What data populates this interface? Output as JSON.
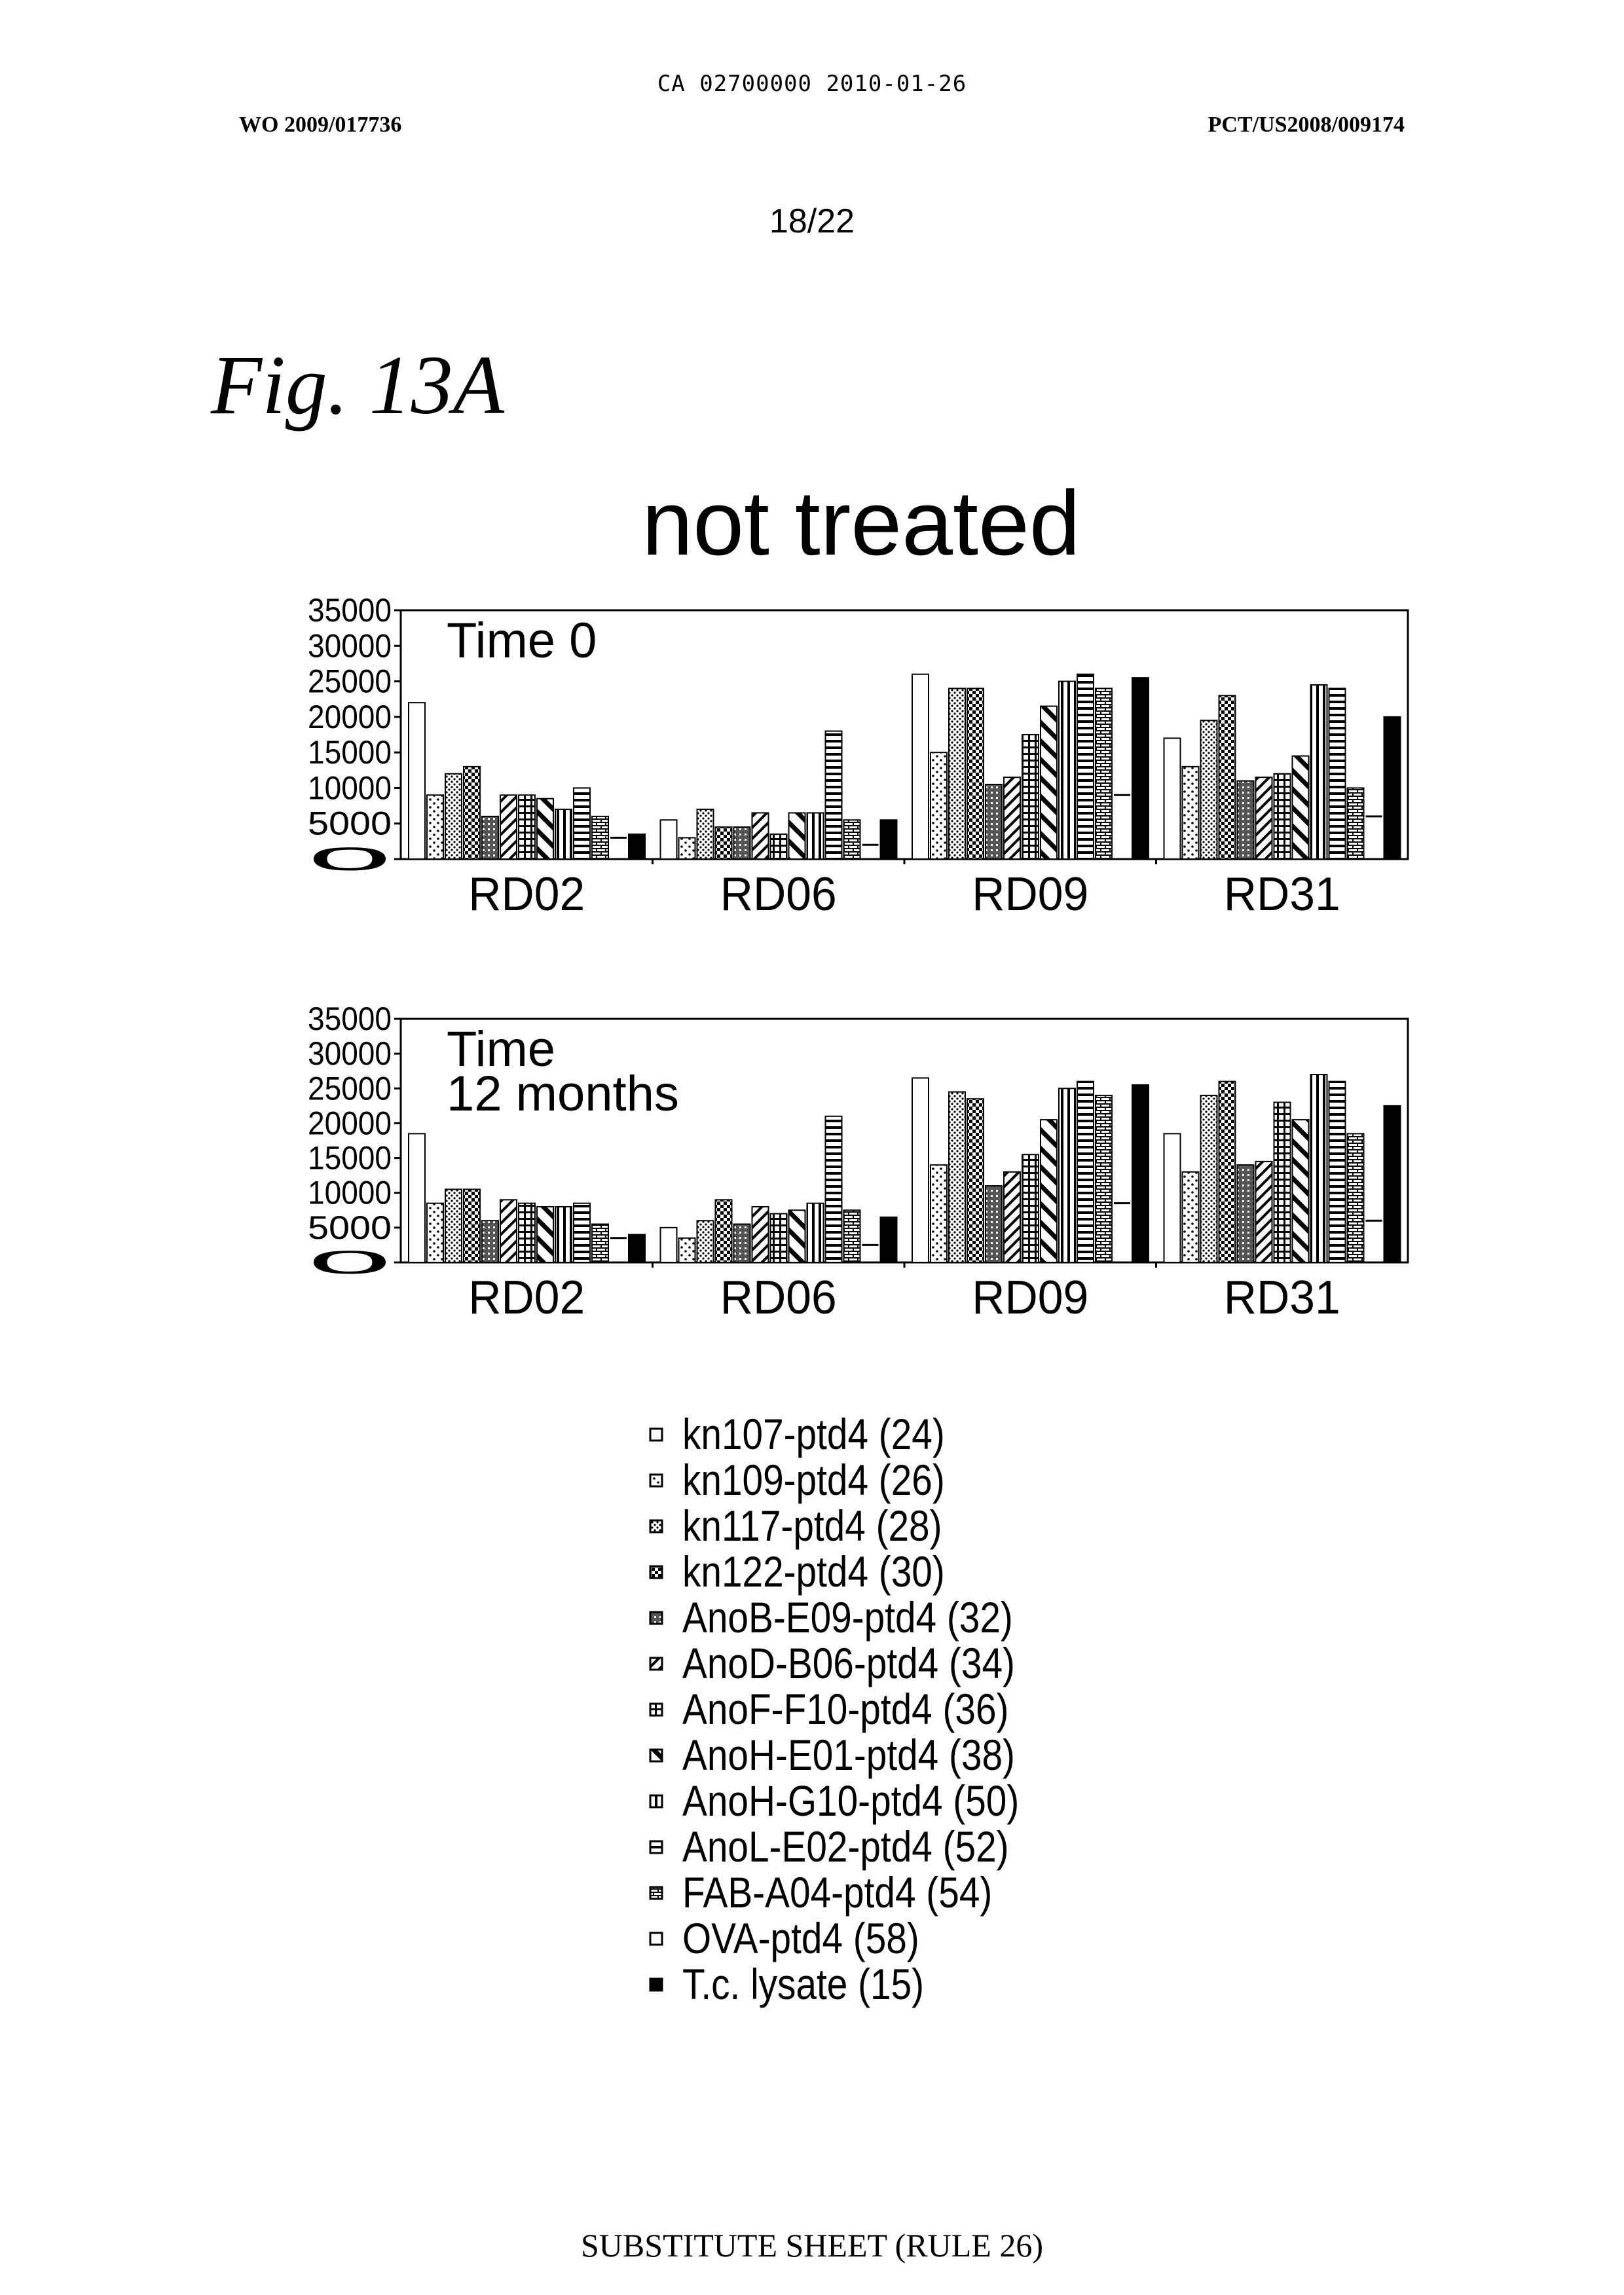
{
  "header": {
    "ca_line": "CA 02700000 2010-01-26",
    "wo_number": "WO 2009/017736",
    "pct_number": "PCT/US2008/009174",
    "page_number": "18/22"
  },
  "figure_label": "Fig. 13A",
  "main_title": "not treated",
  "footer": "SUBSTITUTE SHEET (RULE 26)",
  "chart_data": [
    {
      "type": "bar",
      "title": "Time 0",
      "ylim": [
        0,
        35000
      ],
      "yticks": [
        "35000",
        "30000",
        "25000",
        "20000",
        "15000",
        "10000",
        "5000",
        "0"
      ],
      "categories": [
        "RD02",
        "RD06",
        "RD09",
        "RD31"
      ],
      "series": [
        {
          "name": "kn107-ptd4 (24)",
          "values": [
            22000,
            5500,
            26000,
            17000
          ]
        },
        {
          "name": "kn109-ptd4 (26)",
          "values": [
            9000,
            3000,
            15000,
            13000
          ]
        },
        {
          "name": "kn117-ptd4 (28)",
          "values": [
            12000,
            7000,
            24000,
            19500
          ]
        },
        {
          "name": "kn122-ptd4 (30)",
          "values": [
            13000,
            4500,
            24000,
            23000
          ]
        },
        {
          "name": "AnoB-E09-ptd4 (32)",
          "values": [
            6000,
            4500,
            10500,
            11000
          ]
        },
        {
          "name": "AnoD-B06-ptd4 (34)",
          "values": [
            9000,
            6500,
            11500,
            11500
          ]
        },
        {
          "name": "AnoF-F10-ptd4 (36)",
          "values": [
            9000,
            3500,
            17500,
            12000
          ]
        },
        {
          "name": "AnoH-E01-ptd4 (38)",
          "values": [
            8500,
            6500,
            21500,
            14500
          ]
        },
        {
          "name": "AnoH-G10-ptd4 (50)",
          "values": [
            7000,
            6500,
            25000,
            24500
          ]
        },
        {
          "name": "AnoL-E02-ptd4 (52)",
          "values": [
            10000,
            18000,
            26000,
            24000
          ]
        },
        {
          "name": "FAB-A04-ptd4 (54)",
          "values": [
            6000,
            5500,
            24000,
            10000
          ]
        },
        {
          "name": "OVA-ptd4 (58)",
          "values": [
            3000,
            2000,
            9000,
            6000
          ]
        },
        {
          "name": "T.c. lysate (15)",
          "values": [
            3500,
            5500,
            25500,
            20000
          ]
        }
      ]
    },
    {
      "type": "bar",
      "title": "Time\n12 months",
      "title_lines": [
        "Time",
        "12 months"
      ],
      "ylim": [
        0,
        35000
      ],
      "yticks": [
        "35000",
        "30000",
        "25000",
        "20000",
        "15000",
        "10000",
        "5000",
        "0"
      ],
      "categories": [
        "RD02",
        "RD06",
        "RD09",
        "RD31"
      ],
      "series": [
        {
          "name": "kn107-ptd4 (24)",
          "values": [
            18500,
            5000,
            26500,
            18500
          ]
        },
        {
          "name": "kn109-ptd4 (26)",
          "values": [
            8500,
            3500,
            14000,
            13000
          ]
        },
        {
          "name": "kn117-ptd4 (28)",
          "values": [
            10500,
            6000,
            24500,
            24000
          ]
        },
        {
          "name": "kn122-ptd4 (30)",
          "values": [
            10500,
            9000,
            23500,
            26000
          ]
        },
        {
          "name": "AnoB-E09-ptd4 (32)",
          "values": [
            6000,
            5500,
            11000,
            14000
          ]
        },
        {
          "name": "AnoD-B06-ptd4 (34)",
          "values": [
            9000,
            8000,
            13000,
            14500
          ]
        },
        {
          "name": "AnoF-F10-ptd4 (36)",
          "values": [
            8500,
            7000,
            15500,
            23000
          ]
        },
        {
          "name": "AnoH-E01-ptd4 (38)",
          "values": [
            8000,
            7500,
            20500,
            20500
          ]
        },
        {
          "name": "AnoH-G10-ptd4 (50)",
          "values": [
            8000,
            8500,
            25000,
            27000
          ]
        },
        {
          "name": "AnoL-E02-ptd4 (52)",
          "values": [
            8500,
            21000,
            26000,
            26000
          ]
        },
        {
          "name": "FAB-A04-ptd4 (54)",
          "values": [
            5500,
            7500,
            24000,
            18500
          ]
        },
        {
          "name": "OVA-ptd4 (58)",
          "values": [
            3500,
            2500,
            8500,
            6000
          ]
        },
        {
          "name": "T.c. lysate (15)",
          "values": [
            4000,
            6500,
            25500,
            22500
          ]
        }
      ]
    }
  ],
  "legend": [
    {
      "label": "kn107-ptd4 (24)",
      "icon": "open-square-icon"
    },
    {
      "label": "kn109-ptd4 (26)",
      "icon": "dotted-square-icon"
    },
    {
      "label": "kn117-ptd4 (28)",
      "icon": "dense-dotted-square-icon"
    },
    {
      "label": "kn122-ptd4 (30)",
      "icon": "checkered-square-icon"
    },
    {
      "label": "AnoB-E09-ptd4 (32)",
      "icon": "dark-grid-square-icon"
    },
    {
      "label": "AnoD-B06-ptd4 (34)",
      "icon": "diagonal-square-icon"
    },
    {
      "label": "AnoF-F10-ptd4 (36)",
      "icon": "cross-hatch-square-icon"
    },
    {
      "label": "AnoH-E01-ptd4 (38)",
      "icon": "wide-diagonal-icon"
    },
    {
      "label": "AnoH-G10-ptd4 (50)",
      "icon": "vertical-stripe-square-icon"
    },
    {
      "label": "AnoL-E02-ptd4 (52)",
      "icon": "horizontal-stripe-square-icon"
    },
    {
      "label": "FAB-A04-ptd4 (54)",
      "icon": "brick-square-icon"
    },
    {
      "label": "OVA-ptd4 (58)",
      "icon": "open-square-icon"
    },
    {
      "label": "T.c. lysate (15)",
      "icon": "solid-square-icon"
    }
  ]
}
